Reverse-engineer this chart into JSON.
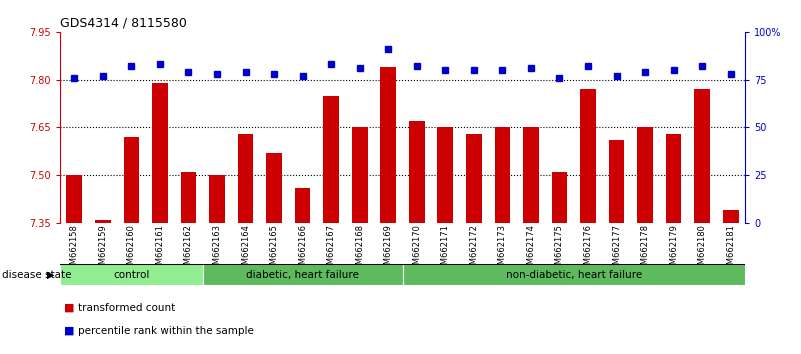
{
  "title": "GDS4314 / 8115580",
  "samples": [
    "GSM662158",
    "GSM662159",
    "GSM662160",
    "GSM662161",
    "GSM662162",
    "GSM662163",
    "GSM662164",
    "GSM662165",
    "GSM662166",
    "GSM662167",
    "GSM662168",
    "GSM662169",
    "GSM662170",
    "GSM662171",
    "GSM662172",
    "GSM662173",
    "GSM662174",
    "GSM662175",
    "GSM662176",
    "GSM662177",
    "GSM662178",
    "GSM662179",
    "GSM662180",
    "GSM662181"
  ],
  "bar_values": [
    7.5,
    7.36,
    7.62,
    7.79,
    7.51,
    7.5,
    7.63,
    7.57,
    7.46,
    7.75,
    7.65,
    7.84,
    7.67,
    7.65,
    7.63,
    7.65,
    7.65,
    7.51,
    7.77,
    7.61,
    7.65,
    7.63,
    7.77,
    7.39
  ],
  "percentile_values": [
    76,
    77,
    82,
    83,
    79,
    78,
    79,
    78,
    77,
    83,
    81,
    91,
    82,
    80,
    80,
    80,
    81,
    76,
    82,
    77,
    79,
    80,
    82,
    78
  ],
  "bar_color": "#cc0000",
  "percentile_color": "#0000cc",
  "ylim_left": [
    7.35,
    7.95
  ],
  "ylim_right": [
    0,
    100
  ],
  "yticks_left": [
    7.35,
    7.5,
    7.65,
    7.8,
    7.95
  ],
  "yticks_right": [
    0,
    25,
    50,
    75,
    100
  ],
  "ytick_labels_right": [
    "0",
    "25",
    "50",
    "75",
    "100%"
  ],
  "grid_values": [
    7.5,
    7.65,
    7.8
  ],
  "groups": [
    {
      "label": "control",
      "start": 0,
      "end": 5
    },
    {
      "label": "diabetic, heart failure",
      "start": 5,
      "end": 12
    },
    {
      "label": "non-diabetic, heart failure",
      "start": 12,
      "end": 24
    }
  ],
  "group_colors": [
    "#90ee90",
    "#5dba5d",
    "#5dba5d"
  ],
  "xlabel_disease": "disease state",
  "legend_bar_label": "transformed count",
  "legend_pct_label": "percentile rank within the sample",
  "bg_color": "#ffffff",
  "plot_bg_color": "#ffffff",
  "title_fontsize": 9,
  "tick_fontsize": 7,
  "bar_width": 0.55
}
